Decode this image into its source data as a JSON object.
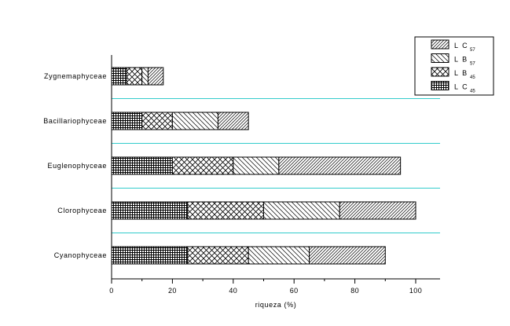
{
  "chart_data": {
    "type": "bar",
    "orientation": "horizontal",
    "stacked": true,
    "xlabel": "riqueza (%)",
    "ylabel": "",
    "title": "",
    "xlim": [
      0,
      108
    ],
    "xticks": [
      0,
      20,
      40,
      60,
      80,
      100
    ],
    "categories": [
      "Cyanophyceae",
      "Clorophyceae",
      "Euglenophyceae",
      "Bacillariophyceae",
      "Zygnemaphyceae"
    ],
    "series": [
      {
        "name": "LC45",
        "label_main": "L C",
        "label_sub": "45",
        "pattern": "grid",
        "values": [
          25,
          25,
          20,
          10,
          5
        ]
      },
      {
        "name": "LB45",
        "label_main": "L B",
        "label_sub": "45",
        "pattern": "cross",
        "values": [
          20,
          25,
          20,
          10,
          5
        ]
      },
      {
        "name": "LB57",
        "label_main": "L B",
        "label_sub": "57",
        "pattern": "back-diag",
        "values": [
          20,
          25,
          15,
          15,
          2
        ]
      },
      {
        "name": "LC57",
        "label_main": "L C",
        "label_sub": "57",
        "pattern": "forward-diag",
        "values": [
          25,
          25,
          40,
          10,
          5
        ]
      }
    ],
    "legend_position": "top-right",
    "legend_order": [
      "LC57",
      "LB57",
      "LB45",
      "LC45"
    ],
    "separator_color": "#33CCCC"
  }
}
